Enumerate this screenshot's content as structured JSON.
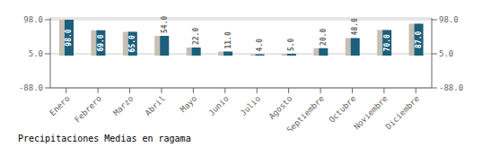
{
  "chart_data": {
    "type": "bar",
    "title": "Precipitaciones Medias en ragama",
    "categories": [
      "Enero",
      "Febrero",
      "Marzo",
      "Abril",
      "Mayo",
      "Junio",
      "Julio",
      "Agosto",
      "Septiembre",
      "Octubre",
      "Noviembre",
      "Diciembre"
    ],
    "series": [
      {
        "color": "#c5bfb5",
        "values": [
          98.0,
          69.0,
          65.0,
          54.0,
          22.0,
          11.0,
          4.0,
          5.0,
          20.0,
          48.0,
          70.0,
          87.0
        ]
      },
      {
        "color": "#1c5f7c",
        "values": [
          98.0,
          69.0,
          65.0,
          54.0,
          22.0,
          11.0,
          4.0,
          5.0,
          20.0,
          48.0,
          70.0,
          87.0
        ],
        "value_labels": [
          "98.0",
          "69.0",
          "65.0",
          "54.0",
          "22.0",
          "11.0",
          "4.0",
          "5.0",
          "20.0",
          "48.0",
          "70.0",
          "87.0"
        ]
      }
    ],
    "ylim": [
      -88,
      102.9
    ],
    "yticks": [
      {
        "value": -88,
        "label": "-88.0"
      },
      {
        "value": 5,
        "label": "5.0"
      },
      {
        "value": 98,
        "label": "98.0"
      }
    ],
    "y2lim": [
      -88,
      102.9
    ],
    "y2ticks": [
      {
        "value": -88,
        "label": "-88.0"
      },
      {
        "value": 5,
        "label": "5.0"
      },
      {
        "value": 98,
        "label": "98.0"
      }
    ],
    "grid": true
  }
}
